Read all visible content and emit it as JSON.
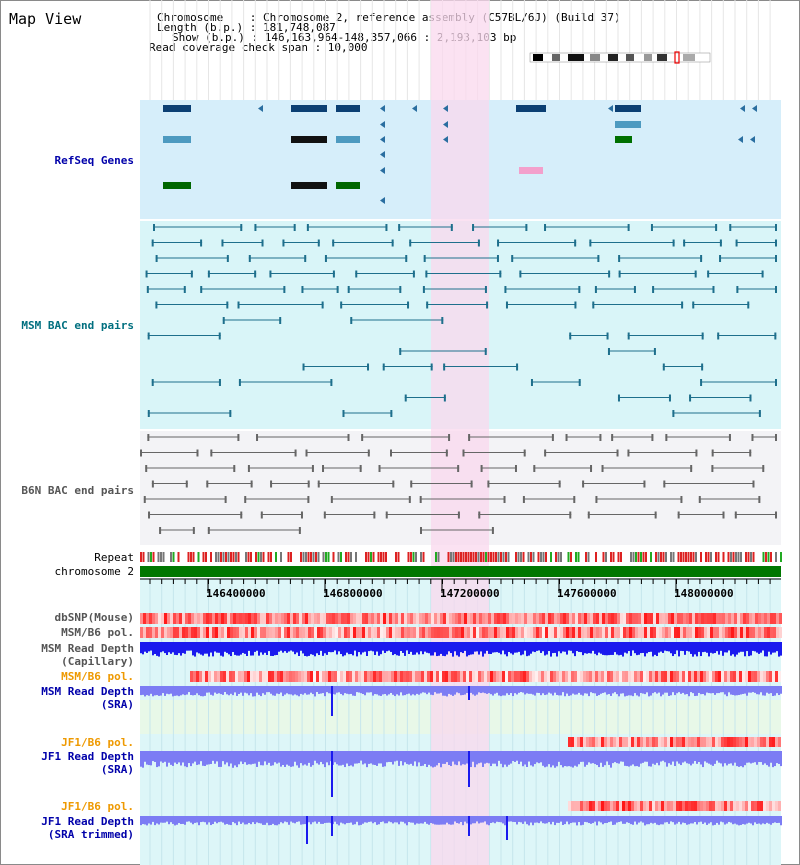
{
  "title": "Map View",
  "info": {
    "line1": "Chromosome    : Chromosome 2, reference assembly (C57BL/6J) (Build 37)",
    "line2": "Length (b.p.) : 181,748,087",
    "line3": "Show (b.p.) : 146,163,964-148,357,066 : 2,193,103 bp",
    "line4": "Read coverage check span : 10,000"
  },
  "tracks": {
    "refseq": "RefSeq Genes",
    "msm_bac": "MSM BAC end pairs",
    "b6n_bac": "B6N BAC end pairs",
    "repeat": "Repeat",
    "chromosome": "chromosome 2",
    "dbsnp": "dbSNP(Mouse)",
    "msm_pol1": "MSM/B6 pol.",
    "msm_depth_cap_1": "MSM Read Depth",
    "msm_depth_cap_2": "(Capillary)",
    "msm_pol2": "MSM/B6 pol.",
    "msm_depth_sra_1": "MSM Read Depth",
    "msm_depth_sra_2": "(SRA)",
    "jf1_pol1": "JF1/B6 pol.",
    "jf1_depth_sra_1": "JF1 Read Depth",
    "jf1_depth_sra_2": "(SRA)",
    "jf1_pol2": "JF1/B6 pol.",
    "jf1_depth_trim_1": "JF1 Read Depth",
    "jf1_depth_trim_2": "(SRA trimmed)"
  },
  "ruler": {
    "ticks": [
      "146400000",
      "146800000",
      "147200000",
      "147600000",
      "148000000"
    ]
  },
  "colors": {
    "highlight": "#f9d8ee",
    "refseq_bg": "#d6eefa",
    "msm_bac_bg": "#d9f5f8",
    "b6n_bac_bg": "#f3f3f6",
    "lower_bg": "#ddf6f8",
    "chromosome_bar": "#007700",
    "depth_blue": "#1a1aee",
    "depth_light": "#7c7cf4",
    "label_blue": "#0000aa",
    "label_teal": "#006f7f",
    "label_orange": "#ee9900",
    "label_gray": "#555555"
  }
}
